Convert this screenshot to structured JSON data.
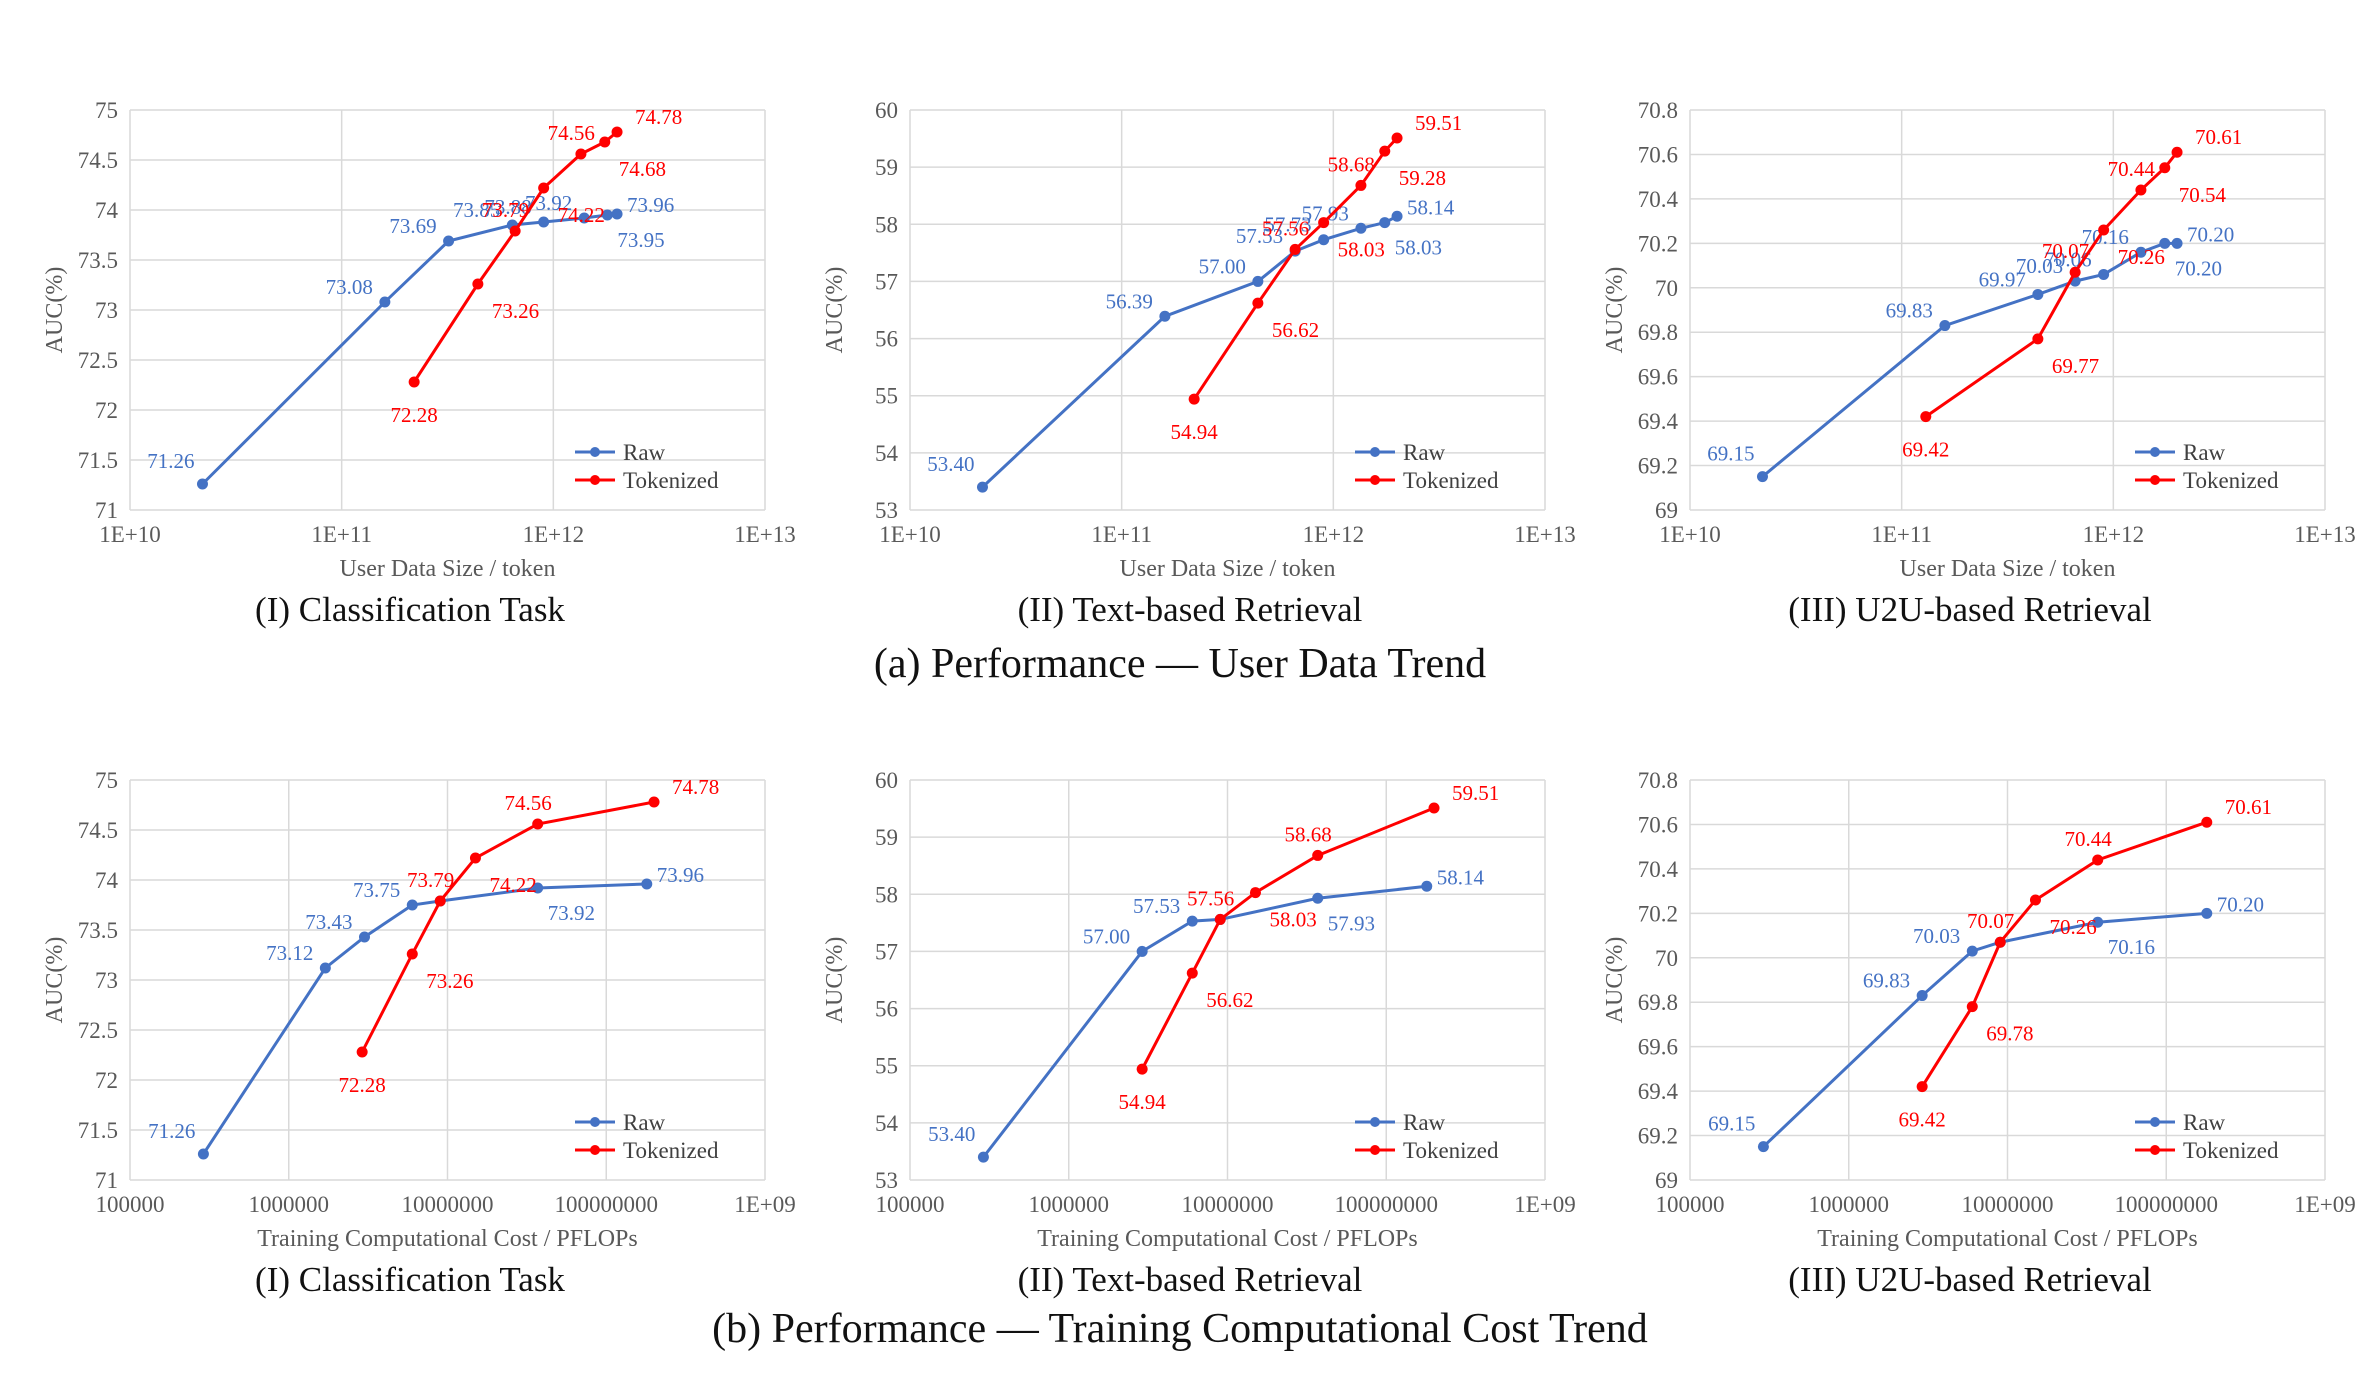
{
  "colors": {
    "raw": "#4472C4",
    "tokenized": "#FF0000",
    "axis": "#BFBFBF",
    "grid": "#D9D9D9"
  },
  "row_captions": [
    "(a) Performance — User Data Trend",
    "(b) Performance — Training Computational Cost Trend"
  ],
  "chart_data": [
    {
      "type": "line",
      "row": 0,
      "col": 0,
      "xscale": "log",
      "xlabel": "User Data Size / token",
      "ylabel": "AUC(%)",
      "caption": "(I) Classification Task",
      "xlim": [
        10000000000.0,
        10000000000000.0
      ],
      "xticks": [
        10000000000.0,
        100000000000.0,
        1000000000000.0,
        10000000000000.0
      ],
      "xtick_labels": [
        "1E+10",
        "1E+11",
        "1E+12",
        "1E+13"
      ],
      "ylim": [
        71,
        75
      ],
      "yticks": [
        71,
        71.5,
        72,
        72.5,
        73,
        73.5,
        74,
        74.5,
        75
      ],
      "ytick_labels": [
        "71",
        "71.5",
        "72",
        "72.5",
        "73",
        "73.5",
        "74",
        "74.5",
        "75"
      ],
      "legend": "bottom-right",
      "grid": true,
      "series": [
        {
          "name": "Raw",
          "color": "#4472C4",
          "x": [
            22000000000.0,
            160000000000.0,
            320000000000.0,
            640000000000.0,
            900000000000.0,
            1400000000000.0,
            1800000000000.0,
            2000000000000.0
          ],
          "y": [
            71.26,
            73.08,
            73.69,
            73.85,
            73.88,
            73.92,
            73.95,
            73.96
          ],
          "labels": [
            "71.26",
            "73.08",
            "73.69",
            "73.85",
            "73.88",
            "73.92",
            "73.95",
            "73.96"
          ]
        },
        {
          "name": "Tokenized",
          "color": "#FF0000",
          "x": [
            220000000000.0,
            440000000000.0,
            660000000000.0,
            900000000000.0,
            1350000000000.0,
            1750000000000.0,
            2000000000000.0
          ],
          "y": [
            72.28,
            73.26,
            73.79,
            74.22,
            74.56,
            74.68,
            74.78
          ],
          "labels": [
            "72.28",
            "73.26",
            "73.79",
            "74.22",
            "74.56",
            "74.68",
            "74.78"
          ]
        }
      ]
    },
    {
      "type": "line",
      "row": 0,
      "col": 1,
      "xscale": "log",
      "xlabel": "User Data Size / token",
      "ylabel": "AUC(%)",
      "caption": "(II) Text-based Retrieval",
      "xlim": [
        10000000000.0,
        10000000000000.0
      ],
      "xticks": [
        10000000000.0,
        100000000000.0,
        1000000000000.0,
        10000000000000.0
      ],
      "xtick_labels": [
        "1E+10",
        "1E+11",
        "1E+12",
        "1E+13"
      ],
      "ylim": [
        53,
        60
      ],
      "yticks": [
        53,
        54,
        55,
        56,
        57,
        58,
        59,
        60
      ],
      "ytick_labels": [
        "53",
        "54",
        "55",
        "56",
        "57",
        "58",
        "59",
        "60"
      ],
      "legend": "bottom-right",
      "grid": true,
      "series": [
        {
          "name": "Raw",
          "color": "#4472C4",
          "x": [
            22000000000.0,
            160000000000.0,
            440000000000.0,
            660000000000.0,
            900000000000.0,
            1350000000000.0,
            1750000000000.0,
            2000000000000.0
          ],
          "y": [
            53.4,
            56.39,
            57.0,
            57.53,
            57.73,
            57.93,
            58.03,
            58.14
          ],
          "labels": [
            "53.40",
            "56.39",
            "57.00",
            "57.53",
            "57.73",
            "57.93",
            "58.03",
            "58.14"
          ]
        },
        {
          "name": "Tokenized",
          "color": "#FF0000",
          "x": [
            220000000000.0,
            440000000000.0,
            660000000000.0,
            900000000000.0,
            1350000000000.0,
            1750000000000.0,
            2000000000000.0
          ],
          "y": [
            54.94,
            56.62,
            57.56,
            58.03,
            58.68,
            59.28,
            59.51
          ],
          "labels": [
            "54.94",
            "56.62",
            "57.56",
            "58.03",
            "58.68",
            "59.28",
            "59.51"
          ]
        }
      ]
    },
    {
      "type": "line",
      "row": 0,
      "col": 2,
      "xscale": "log",
      "xlabel": "User Data Size / token",
      "ylabel": "AUC(%)",
      "caption": "(III) U2U-based Retrieval",
      "xlim": [
        10000000000.0,
        10000000000000.0
      ],
      "xticks": [
        10000000000.0,
        100000000000.0,
        1000000000000.0,
        10000000000000.0
      ],
      "xtick_labels": [
        "1E+10",
        "1E+11",
        "1E+12",
        "1E+13"
      ],
      "ylim": [
        69,
        70.8
      ],
      "yticks": [
        69,
        69.2,
        69.4,
        69.6,
        69.8,
        70,
        70.2,
        70.4,
        70.6,
        70.8
      ],
      "ytick_labels": [
        "69",
        "69.2",
        "69.4",
        "69.6",
        "69.8",
        "70",
        "70.2",
        "70.4",
        "70.6",
        "70.8"
      ],
      "legend": "bottom-right",
      "grid": true,
      "series": [
        {
          "name": "Raw",
          "color": "#4472C4",
          "x": [
            22000000000.0,
            160000000000.0,
            440000000000.0,
            660000000000.0,
            900000000000.0,
            1350000000000.0,
            1750000000000.0,
            2000000000000.0
          ],
          "y": [
            69.15,
            69.83,
            69.97,
            70.03,
            70.06,
            70.16,
            70.2,
            70.2
          ],
          "labels": [
            "69.15",
            "69.83",
            "69.97",
            "70.03",
            "70.06",
            "70.16",
            "70.20",
            "70.20"
          ]
        },
        {
          "name": "Tokenized",
          "color": "#FF0000",
          "x": [
            130000000000.0,
            440000000000.0,
            660000000000.0,
            900000000000.0,
            1350000000000.0,
            1750000000000.0,
            2000000000000.0
          ],
          "y": [
            69.42,
            69.77,
            70.07,
            70.26,
            70.44,
            70.54,
            70.61
          ],
          "labels": [
            "69.42",
            "69.77",
            "70.07",
            "70.26",
            "70.44",
            "70.54",
            "70.61"
          ]
        }
      ]
    },
    {
      "type": "line",
      "row": 1,
      "col": 0,
      "xscale": "log",
      "xlabel": "Training Computational Cost / PFLOPs",
      "ylabel": "AUC(%)",
      "caption": "(I) Classification Task",
      "xlim": [
        100000.0,
        1000000000.0
      ],
      "xticks": [
        100000.0,
        1000000.0,
        10000000.0,
        100000000.0,
        1000000000.0
      ],
      "xtick_labels": [
        "100000",
        "1000000",
        "10000000",
        "100000000",
        "1E+09"
      ],
      "ylim": [
        71,
        75
      ],
      "yticks": [
        71,
        71.5,
        72,
        72.5,
        73,
        73.5,
        74,
        74.5,
        75
      ],
      "ytick_labels": [
        "71",
        "71.5",
        "72",
        "72.5",
        "73",
        "73.5",
        "74",
        "74.5",
        "75"
      ],
      "legend": "bottom-right",
      "grid": true,
      "series": [
        {
          "name": "Raw",
          "color": "#4472C4",
          "x": [
            290000,
            1700000,
            3000000,
            6000000,
            9000000,
            37000000,
            180000000
          ],
          "y": [
            71.26,
            73.12,
            73.43,
            73.75,
            73.79,
            73.92,
            73.96
          ],
          "labels": [
            "71.26",
            "73.12",
            "73.43",
            "73.75",
            "",
            "73.92",
            "73.96"
          ]
        },
        {
          "name": "Tokenized",
          "color": "#FF0000",
          "x": [
            2900000,
            6000000,
            9000000,
            15000000,
            37000000,
            200000000
          ],
          "y": [
            72.28,
            73.26,
            73.79,
            74.22,
            74.56,
            74.78
          ],
          "labels": [
            "72.28",
            "73.26",
            "73.79",
            "74.22",
            "74.56",
            "74.78"
          ]
        }
      ]
    },
    {
      "type": "line",
      "row": 1,
      "col": 1,
      "xscale": "log",
      "xlabel": "Training Computational Cost / PFLOPs",
      "ylabel": "AUC(%)",
      "caption": "(II) Text-based Retrieval",
      "xlim": [
        100000.0,
        1000000000.0
      ],
      "xticks": [
        100000.0,
        1000000.0,
        10000000.0,
        100000000.0,
        1000000000.0
      ],
      "xtick_labels": [
        "100000",
        "1000000",
        "10000000",
        "100000000",
        "1E+09"
      ],
      "ylim": [
        53,
        60
      ],
      "yticks": [
        53,
        54,
        55,
        56,
        57,
        58,
        59,
        60
      ],
      "ytick_labels": [
        "53",
        "54",
        "55",
        "56",
        "57",
        "58",
        "59",
        "60"
      ],
      "legend": "bottom-right",
      "grid": true,
      "series": [
        {
          "name": "Raw",
          "color": "#4472C4",
          "x": [
            290000,
            2900000,
            6000000,
            9000000,
            37000000,
            180000000
          ],
          "y": [
            53.4,
            57.0,
            57.53,
            57.56,
            57.93,
            58.14
          ],
          "labels": [
            "53.40",
            "57.00",
            "57.53",
            "",
            "57.93",
            "58.14"
          ]
        },
        {
          "name": "Tokenized",
          "color": "#FF0000",
          "x": [
            2900000,
            6000000,
            9000000,
            15000000,
            37000000,
            200000000
          ],
          "y": [
            54.94,
            56.62,
            57.56,
            58.03,
            58.68,
            59.51
          ],
          "labels": [
            "54.94",
            "56.62",
            "57.56",
            "58.03",
            "58.68",
            "59.51"
          ]
        }
      ]
    },
    {
      "type": "line",
      "row": 1,
      "col": 2,
      "xscale": "log",
      "xlabel": "Training Computational Cost / PFLOPs",
      "ylabel": "AUC(%)",
      "caption": "(III) U2U-based Retrieval",
      "xlim": [
        100000.0,
        1000000000.0
      ],
      "xticks": [
        100000.0,
        1000000.0,
        10000000.0,
        100000000.0,
        1000000000.0
      ],
      "xtick_labels": [
        "100000",
        "1000000",
        "10000000",
        "100000000",
        "1E+09"
      ],
      "ylim": [
        69,
        70.8
      ],
      "yticks": [
        69,
        69.2,
        69.4,
        69.6,
        69.8,
        70,
        70.2,
        70.4,
        70.6,
        70.8
      ],
      "ytick_labels": [
        "69",
        "69.2",
        "69.4",
        "69.6",
        "69.8",
        "70",
        "70.2",
        "70.4",
        "70.6",
        "70.8"
      ],
      "legend": "bottom-right",
      "grid": true,
      "series": [
        {
          "name": "Raw",
          "color": "#4472C4",
          "x": [
            290000,
            2900000,
            6000000,
            9000000,
            37000000,
            180000000
          ],
          "y": [
            69.15,
            69.83,
            70.03,
            70.07,
            70.16,
            70.2
          ],
          "labels": [
            "69.15",
            "69.83",
            "70.03",
            "",
            "70.16",
            "70.20"
          ]
        },
        {
          "name": "Tokenized",
          "color": "#FF0000",
          "x": [
            2900000,
            6000000,
            9000000,
            15000000,
            37000000,
            180000000
          ],
          "y": [
            69.42,
            69.78,
            70.07,
            70.26,
            70.44,
            70.61
          ],
          "labels": [
            "69.42",
            "69.78",
            "70.07",
            "70.26",
            "70.44",
            "70.61"
          ]
        }
      ]
    }
  ]
}
